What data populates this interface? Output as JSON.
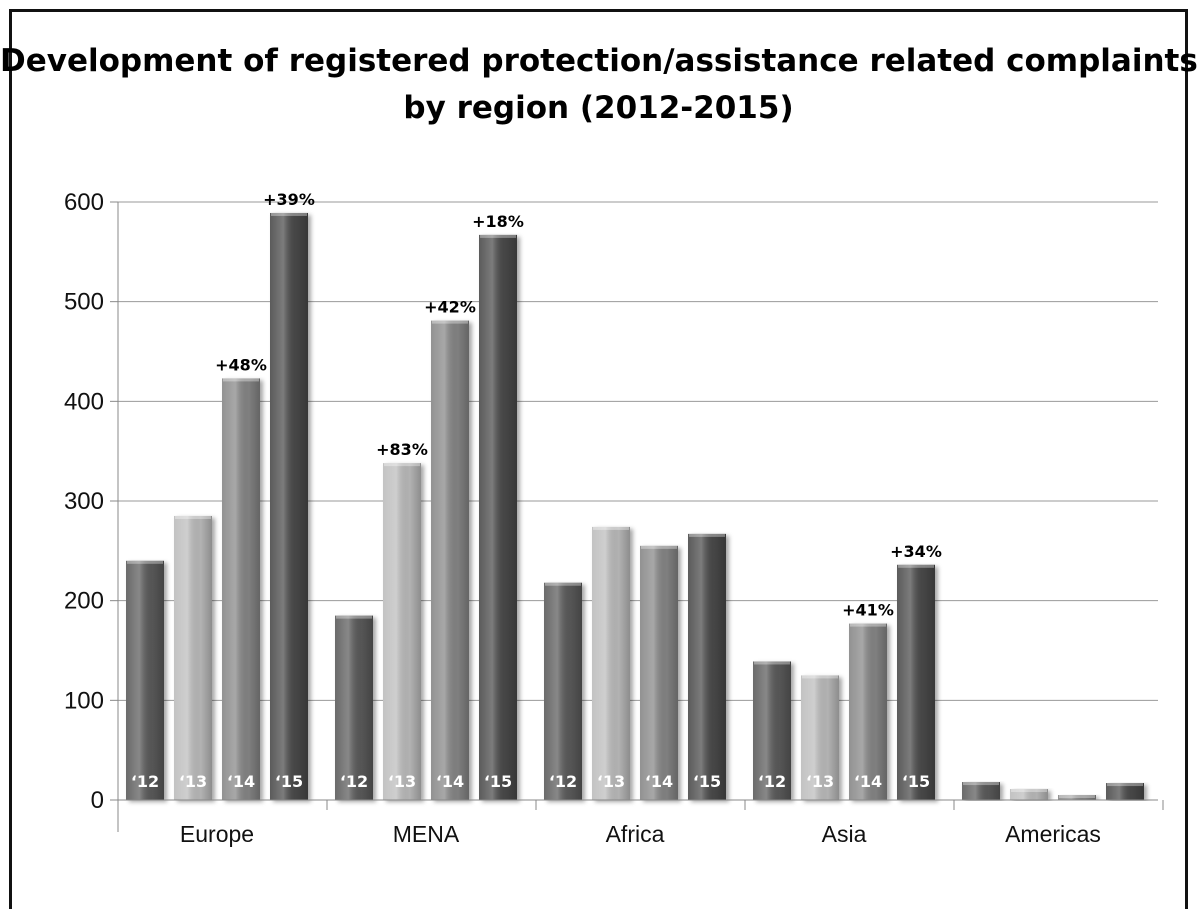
{
  "chart_data": {
    "type": "bar",
    "title_lines": [
      "Development of registered protection/assistance related complaints",
      "by region (2012-2015)"
    ],
    "xlabel": "",
    "ylabel": "",
    "ylim": [
      0,
      600
    ],
    "yticks": [
      0,
      100,
      200,
      300,
      400,
      500,
      600
    ],
    "grid": true,
    "legend": "none",
    "categories": [
      "Europe",
      "MENA",
      "Africa",
      "Asia",
      "Americas"
    ],
    "series": [
      {
        "year_label": "‘12",
        "color": "#5a5a5a",
        "values": [
          240,
          185,
          218,
          139,
          18
        ]
      },
      {
        "year_label": "‘13",
        "color": "#bcbcbc",
        "values": [
          285,
          338,
          274,
          125,
          11
        ]
      },
      {
        "year_label": "‘14",
        "color": "#868686",
        "values": [
          423,
          481,
          255,
          177,
          5
        ]
      },
      {
        "year_label": "‘15",
        "color": "#4a4a4a",
        "values": [
          589,
          567,
          267,
          236,
          17
        ]
      }
    ],
    "year_labels_on_categories": [
      "Europe",
      "MENA",
      "Africa",
      "Asia"
    ],
    "annotations": [
      {
        "category": "Europe",
        "series": 2,
        "text": "+48%"
      },
      {
        "category": "Europe",
        "series": 3,
        "text": "+39%"
      },
      {
        "category": "MENA",
        "series": 1,
        "text": "+83%"
      },
      {
        "category": "MENA",
        "series": 2,
        "text": "+42%"
      },
      {
        "category": "MENA",
        "series": 3,
        "text": "+18%"
      },
      {
        "category": "Asia",
        "series": 2,
        "text": "+41%"
      },
      {
        "category": "Asia",
        "series": 3,
        "text": "+34%"
      }
    ]
  }
}
